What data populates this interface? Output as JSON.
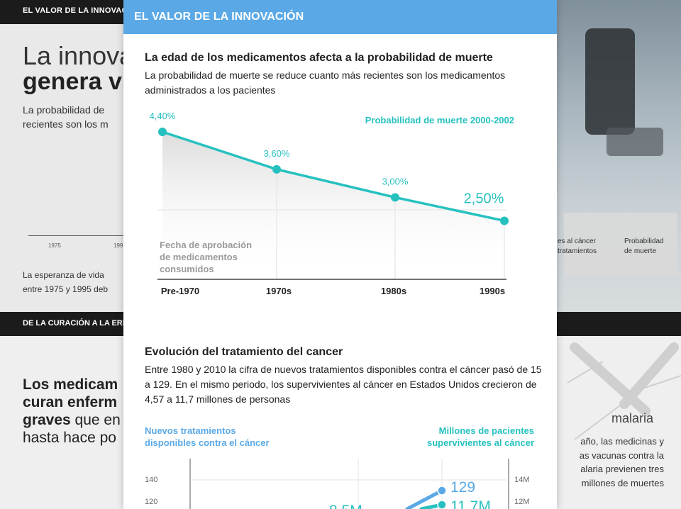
{
  "background": {
    "top_band": "EL VALOR DE LA INNOVAC",
    "title_line1": "La innova",
    "title_line2": "genera v",
    "subtitle_l1": "La probabilidad de",
    "subtitle_l2": "recientes son los m",
    "tick_1975": "1975",
    "tick_199": "199",
    "note_l1": "La esperanza de vida",
    "note_l2": "entre 1975 y 1995 deb",
    "right_legend_a_l1": "es al cáncer",
    "right_legend_a_l2": "tratamientos",
    "right_legend_b_l1": "Probabilidad",
    "right_legend_b_l2": "de muerte",
    "mid_band": "DE LA CURACIÓN A LA ERR",
    "big_l1": "Los medicam",
    "big_l2": "curan enferm",
    "big_l3_bold": "graves",
    "big_l3_rest": " que en",
    "big_l4": "hasta hace po",
    "malaria_title": "malaria",
    "malaria_l1": "año, las medicinas y",
    "malaria_l2": "as vacunas contra la",
    "malaria_l3": "alaria previenen tres",
    "malaria_l4": "millones de muertes"
  },
  "modal": {
    "header": "EL VALOR DE LA INNOVACIÓN",
    "section1_title": "La edad de los medicamentos afecta a la probabilidad de muerte",
    "section1_text": "La probabilidad de muerte se reduce cuanto más recientes son los medicamentos administrados a los pacientes",
    "section2_title": "Evolución del tratamiento del cancer",
    "section2_text": "Entre 1980 y 2010 la cifra de nuevos tratamientos disponibles contra el cáncer pasó de 15 a 129. En el mismo periodo, los supervivientes al cáncer en Estados Unidos crecieron de 4,57 a 11,7 millones de personas"
  },
  "chart_data": [
    {
      "type": "area",
      "series_label": "Probabilidad de muerte 2000-2002",
      "x_title_l1": "Fecha de aprobación",
      "x_title_l2": "de medicamentos",
      "x_title_l3": "consumidos",
      "categories": [
        "Pre-1970",
        "1970s",
        "1980s",
        "1990s"
      ],
      "values": [
        4.4,
        3.6,
        3.0,
        2.5
      ],
      "value_labels": [
        "4,40%",
        "3,60%",
        "3,00%",
        "2,50%"
      ],
      "ylim": [
        1.25,
        4.4
      ],
      "color": "#26c1bf"
    },
    {
      "type": "line",
      "left_label_l1": "Nuevos tratamientos",
      "left_label_l2": "disponibles contra el cáncer",
      "right_label_l1": "Millones de pacientes",
      "right_label_l2": "supervivientes al cáncer",
      "left_ticks": [
        "140",
        "120"
      ],
      "left_tick_values": [
        140,
        120
      ],
      "right_ticks": [
        "14M",
        "12M"
      ],
      "right_tick_values": [
        14,
        12
      ],
      "series": [
        {
          "axis": "left",
          "color": "#5aa9e6",
          "end_value": 129,
          "end_label": "129"
        },
        {
          "axis": "right",
          "color": "#26c1bf",
          "end_value": 11.7,
          "end_label": "11,7M"
        }
      ],
      "partial_label": "8,5M"
    }
  ]
}
